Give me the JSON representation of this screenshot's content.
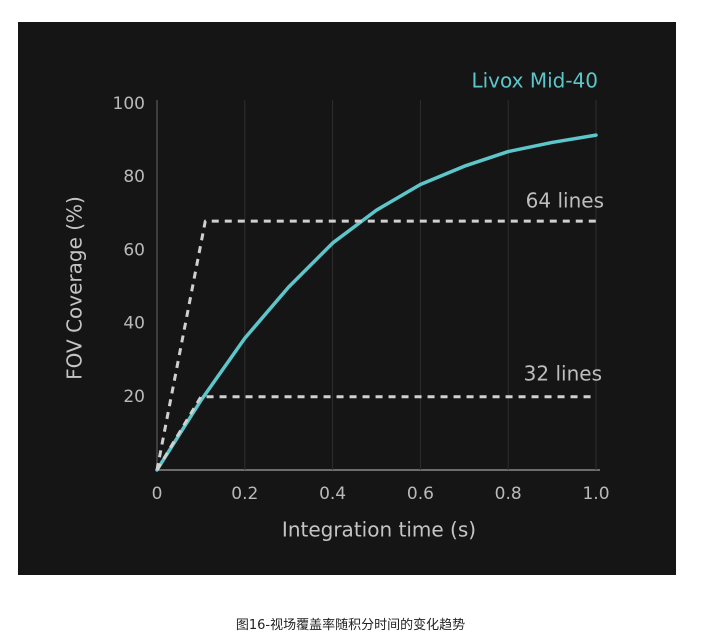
{
  "chart_data": {
    "type": "line",
    "xlabel": "Integration time (s)",
    "ylabel": "FOV Coverage (%)",
    "xlim": [
      0,
      1
    ],
    "ylim": [
      0,
      100
    ],
    "xticks": [
      0,
      0.2,
      0.4,
      0.6,
      0.8,
      {
        "value": 1,
        "label": "1.0"
      }
    ],
    "yticks": [
      20,
      40,
      60,
      80,
      100
    ],
    "grid": true,
    "series": [
      {
        "name": "Livox Mid-40",
        "color": "#5cc6ca",
        "dashed": false,
        "x": [
          0,
          0.1,
          0.2,
          0.3,
          0.4,
          0.5,
          0.6,
          0.7,
          0.8,
          0.9,
          1.0
        ],
        "values": [
          0,
          19,
          36,
          50,
          62,
          71,
          78,
          83,
          87,
          89.5,
          91.5
        ]
      },
      {
        "name": "64 lines",
        "color": "#d0d0d0",
        "dashed": true,
        "x": [
          0,
          0.11,
          1.0
        ],
        "values": [
          0,
          68,
          68
        ]
      },
      {
        "name": "32 lines",
        "color": "#d0d0d0",
        "dashed": true,
        "x": [
          0,
          0.1,
          1.0
        ],
        "values": [
          0,
          20,
          20
        ]
      }
    ]
  },
  "caption": "图16-视场覆盖率随积分时间的变化趋势"
}
